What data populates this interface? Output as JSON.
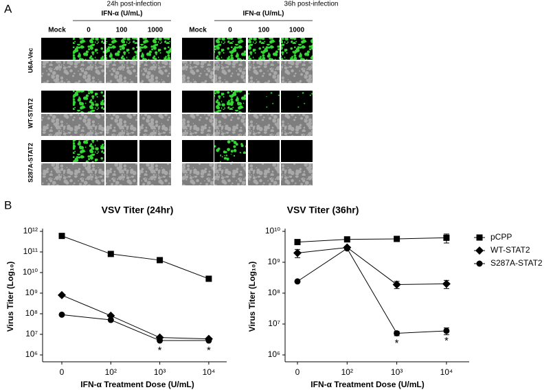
{
  "panel_a": {
    "label": "A",
    "groups": [
      {
        "title": "24h post-infection",
        "treatment": "IFN-α (U/mL)",
        "columns": [
          "Mock",
          "0",
          "100",
          "1000"
        ]
      },
      {
        "title": "36h post-infection",
        "treatment": "IFN-α (U/mL)",
        "columns": [
          "Mock",
          "0",
          "100",
          "1000"
        ]
      }
    ],
    "rows": [
      "U6A-Vec",
      "WT-STAT2",
      "S287A-STAT2"
    ]
  },
  "panel_b": {
    "label": "B"
  },
  "chart_data": [
    {
      "type": "line",
      "title": "VSV Titer (24hr)",
      "y_label": "Virus Titer (Log₁₀)",
      "x_label": "IFN-α Treatment Dose (U/mL)",
      "categories": [
        "0",
        "10²",
        "10³",
        "10⁴"
      ],
      "log_scale": true,
      "ylim": [
        1000000,
        1000000000000
      ],
      "yticks": [
        {
          "value": 1000000,
          "label": "10⁶"
        },
        {
          "value": 10000000,
          "label": "10⁷"
        },
        {
          "value": 100000000,
          "label": "10⁸"
        },
        {
          "value": 1000000000,
          "label": "10⁹"
        },
        {
          "value": 10000000000,
          "label": "10¹⁰"
        },
        {
          "value": 100000000000,
          "label": "10¹¹"
        },
        {
          "value": 1000000000000,
          "label": "10¹²"
        }
      ],
      "series": [
        {
          "marker": "square",
          "color": "#000000",
          "values": [
            600000000000,
            80000000000,
            40000000000,
            5000000000
          ]
        },
        {
          "marker": "diamond",
          "color": "#000000",
          "values": [
            800000000,
            80000000,
            7000000,
            6000000
          ]
        },
        {
          "marker": "circle",
          "color": "#000000",
          "values": [
            90000000,
            50000000,
            5000000,
            5000000
          ]
        }
      ],
      "annotations": [
        {
          "text": "*",
          "x": "10³"
        },
        {
          "text": "*",
          "x": "10⁴"
        }
      ]
    },
    {
      "type": "line",
      "title": "VSV Titer (36hr)",
      "y_label": "Virus Titer (Log₁₀)",
      "x_label": "IFN-α Treatment Dose (U/mL)",
      "categories": [
        "0",
        "10²",
        "10³",
        "10⁴"
      ],
      "log_scale": true,
      "ylim": [
        1000000,
        10000000000
      ],
      "yticks": [
        {
          "value": 1000000,
          "label": "10⁶"
        },
        {
          "value": 10000000,
          "label": "10⁷"
        },
        {
          "value": 100000000,
          "label": "10⁸"
        },
        {
          "value": 1000000000,
          "label": "10⁹"
        },
        {
          "value": 10000000000,
          "label": "10¹⁰"
        }
      ],
      "legend": "right",
      "series": [
        {
          "name": "pCPP",
          "marker": "square",
          "color": "#000000",
          "values": [
            4500000000,
            5500000000,
            5700000000,
            6200000000
          ],
          "errors": [
            600000000,
            300000000,
            500000000,
            2000000000
          ]
        },
        {
          "name": "WT-STAT2",
          "marker": "diamond",
          "color": "#000000",
          "values": [
            2000000000,
            3000000000,
            190000000,
            200000000
          ],
          "errors": [
            600000000,
            300000000,
            50000000,
            60000000
          ]
        },
        {
          "name": "S287A-STAT2",
          "marker": "circle",
          "color": "#000000",
          "values": [
            240000000,
            2800000000,
            5000000,
            6000000
          ],
          "errors": [
            null,
            null,
            800000,
            1500000
          ]
        }
      ],
      "annotations": [
        {
          "text": "*",
          "x": "10³"
        },
        {
          "text": "*",
          "x": "10⁴"
        }
      ]
    }
  ]
}
